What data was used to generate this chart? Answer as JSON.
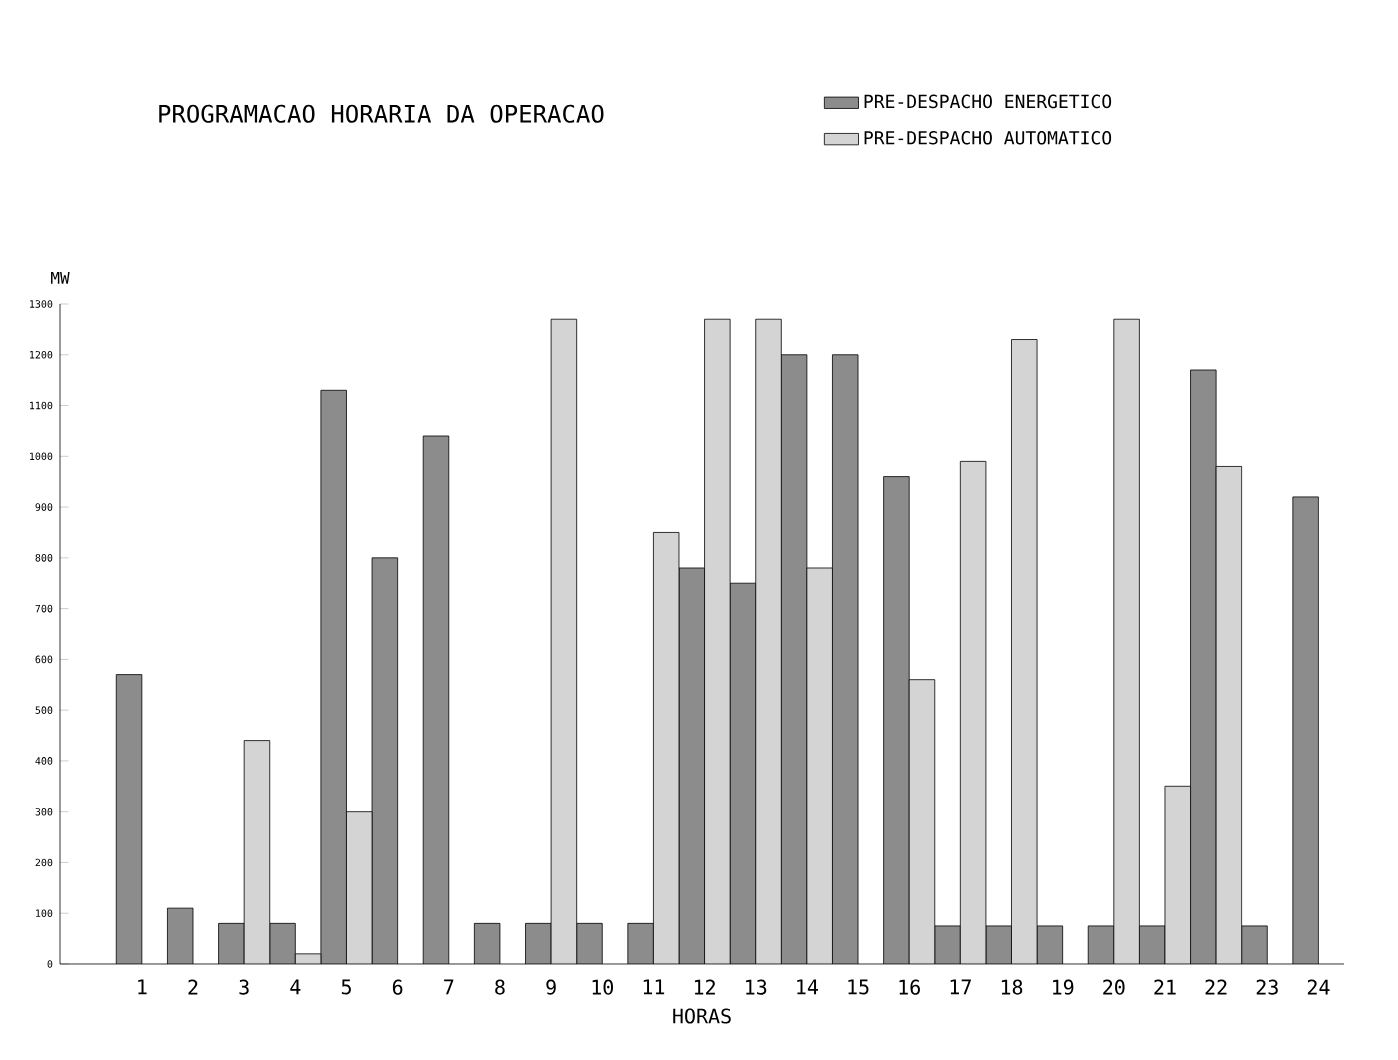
{
  "chart_data": {
    "type": "bar",
    "title": "PROGRAMACAO HORARIA DA OPERACAO",
    "xlabel": "HORAS",
    "ylabel": "MW",
    "categories": [
      "1",
      "2",
      "3",
      "4",
      "5",
      "6",
      "7",
      "8",
      "9",
      "10",
      "11",
      "12",
      "13",
      "14",
      "15",
      "16",
      "17",
      "18",
      "19",
      "20",
      "21",
      "22",
      "23",
      "24"
    ],
    "series": [
      {
        "name": "PRE-DESPACHO ENERGETICO",
        "color": "#8c8c8c",
        "values": [
          570,
          110,
          80,
          80,
          1130,
          800,
          1040,
          80,
          80,
          80,
          80,
          780,
          750,
          1200,
          1200,
          960,
          75,
          75,
          75,
          75,
          75,
          1170,
          75,
          920
        ]
      },
      {
        "name": "PRE-DESPACHO AUTOMATICO",
        "color": "#d4d4d4",
        "values": [
          null,
          null,
          440,
          20,
          300,
          null,
          null,
          null,
          1270,
          null,
          850,
          1270,
          1270,
          780,
          null,
          560,
          990,
          1230,
          null,
          1270,
          350,
          980,
          null,
          null
        ]
      }
    ],
    "ylim": [
      0,
      1300
    ],
    "yticks": [
      0,
      100,
      200,
      300,
      400,
      500,
      600,
      700,
      800,
      900,
      1000,
      1100,
      1200,
      1300
    ],
    "legend": "top right",
    "grid": false
  }
}
